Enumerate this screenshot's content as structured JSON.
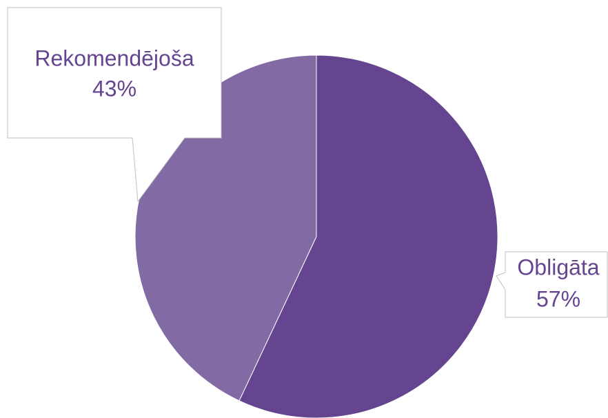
{
  "chart_data": {
    "type": "pie",
    "categories": [
      "Obligāta",
      "Rekomendējoša"
    ],
    "values": [
      57,
      43
    ],
    "value_labels": [
      "57%",
      "43%"
    ],
    "colors": [
      "#654590",
      "#826aa4"
    ]
  }
}
